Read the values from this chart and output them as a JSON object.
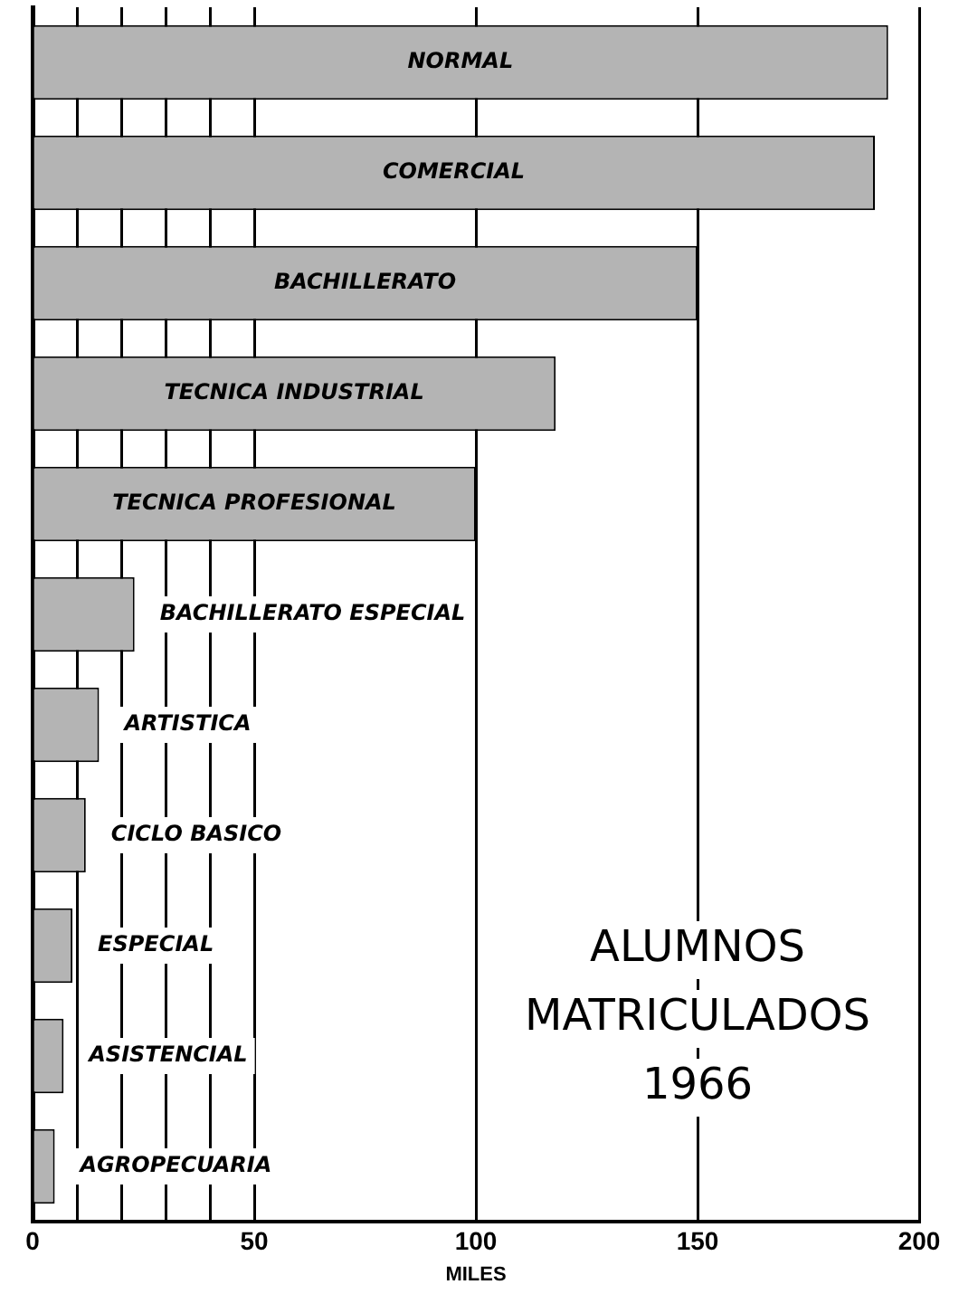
{
  "chart_data": {
    "type": "bar",
    "orientation": "horizontal",
    "title": "ALUMNOS MATRICULADOS 1966",
    "xlabel": "MILES",
    "categories": [
      "NORMAL",
      "COMERCIAL",
      "BACHILLERATO",
      "TECNICA INDUSTRIAL",
      "TECNICA PROFESIONAL",
      "BACHILLERATO ESPECIAL",
      "ARTISTICA",
      "CICLO BASICO",
      "ESPECIAL",
      "ASISTENCIAL",
      "AGROPECUARIA"
    ],
    "values": [
      193,
      190,
      150,
      118,
      100,
      23,
      15,
      12,
      9,
      7,
      5
    ],
    "color": "#b4b4b4",
    "xlim": [
      0,
      200
    ],
    "xticks": [
      0,
      {
        "value": 10,
        "label": null
      },
      {
        "value": 20,
        "label": null
      },
      {
        "value": 30,
        "label": null
      },
      {
        "value": 40,
        "label": null
      },
      50,
      100,
      150,
      200
    ],
    "grid": "x",
    "legend": false
  }
}
